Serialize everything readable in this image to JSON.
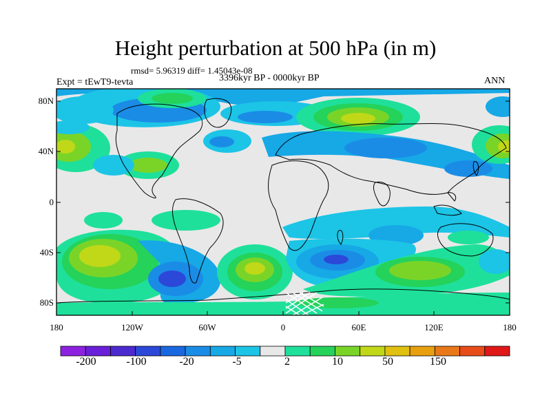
{
  "title": "Height perturbation at 500 hPa (in m)",
  "stats": "rmsd= 5.96319 diff= 1.45043e-08",
  "experiment": "Expt = tEwT9-tevta",
  "period": "3396kyr BP - 0000kyr BP",
  "season": "ANN",
  "lat_ticks": [
    "80N",
    "40N",
    "0",
    "40S",
    "80S"
  ],
  "lon_ticks": [
    "180",
    "120W",
    "60W",
    "0",
    "60E",
    "120E",
    "180"
  ],
  "colorbar": {
    "colors": [
      "#8c22e0",
      "#6a1fd8",
      "#4b2ad0",
      "#2c48d8",
      "#1a68e0",
      "#1a8ce6",
      "#17a8e6",
      "#1cc4e6",
      "#e8e8e8",
      "#1ee09a",
      "#25d25a",
      "#7ad428",
      "#c0d818",
      "#e0c010",
      "#e8a010",
      "#e87818",
      "#e84c18",
      "#e01818"
    ],
    "labels": [
      "-200",
      "-100",
      "-20",
      "-5",
      "2",
      "10",
      "50",
      "150"
    ]
  }
}
